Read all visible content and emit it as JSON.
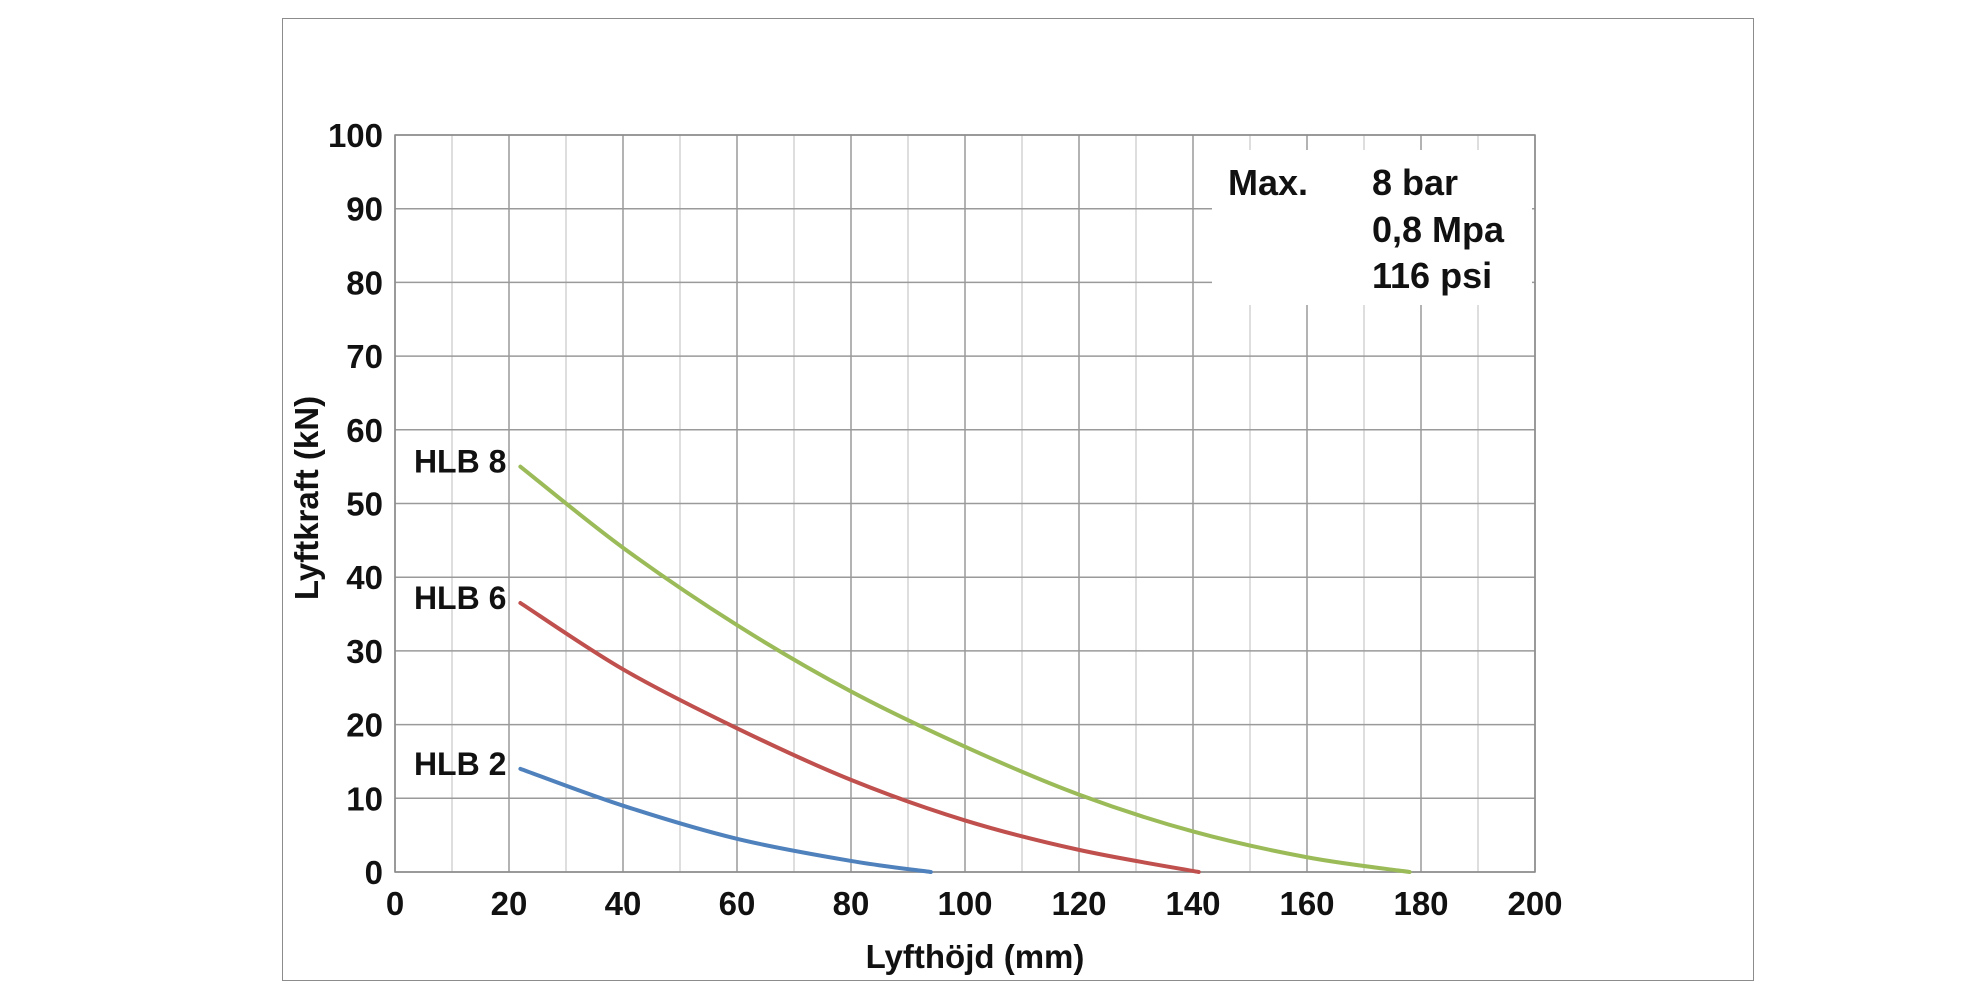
{
  "chart_data": {
    "type": "line",
    "xlabel": "Lyfthöjd (mm)",
    "ylabel": "Lyftkraft (kN)",
    "xlim": [
      0,
      200
    ],
    "ylim": [
      0,
      100
    ],
    "x_ticks": [
      "0",
      "20",
      "40",
      "60",
      "80",
      "100",
      "120",
      "140",
      "160",
      "180",
      "200"
    ],
    "y_ticks": [
      "0",
      "10",
      "20",
      "30",
      "40",
      "50",
      "60",
      "70",
      "80",
      "90",
      "100"
    ],
    "grid": true,
    "series": [
      {
        "name": "HLB 8",
        "color": "#9bbb59",
        "x": [
          22,
          40,
          60,
          80,
          100,
          120,
          140,
          160,
          178
        ],
        "y": [
          55,
          44,
          33.5,
          24.5,
          17,
          10.5,
          5.5,
          2,
          0
        ]
      },
      {
        "name": "HLB 6",
        "color": "#c0504d",
        "x": [
          22,
          40,
          60,
          80,
          100,
          120,
          141
        ],
        "y": [
          36.5,
          27.5,
          19.5,
          12.5,
          7,
          3,
          0
        ]
      },
      {
        "name": "HLB 2",
        "color": "#4f81bd",
        "x": [
          22,
          40,
          60,
          80,
          94
        ],
        "y": [
          14,
          9,
          4.5,
          1.5,
          0
        ]
      }
    ],
    "annotation": {
      "label": "Max.",
      "lines": [
        "8 bar",
        "0,8 Mpa",
        "116 psi"
      ]
    }
  }
}
